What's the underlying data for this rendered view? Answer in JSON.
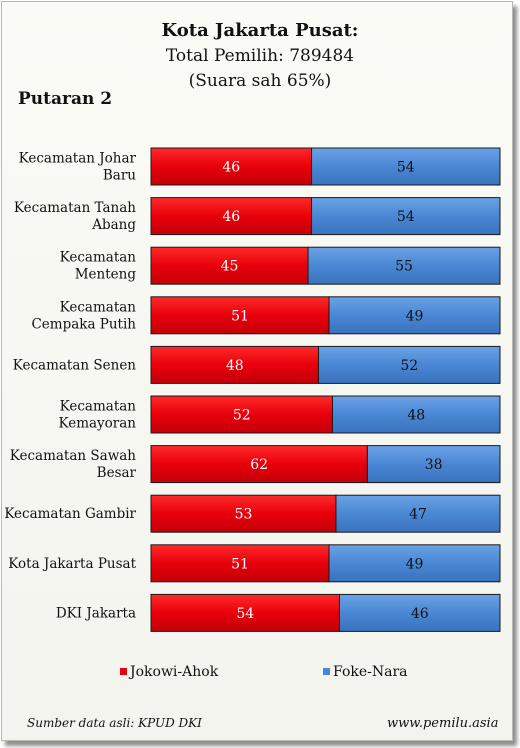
{
  "chart_data": {
    "type": "bar",
    "stacked": true,
    "orientation": "horizontal",
    "title": "Kota Jakarta Pusat:",
    "subtitle_lines": [
      "Total Pemilih: 789484",
      "(Suara sah 65%)"
    ],
    "round_label": "Putaran 2",
    "categories": [
      [
        "Kecamatan Johar",
        "Baru"
      ],
      [
        "Kecamatan Tanah",
        "Abang"
      ],
      [
        "Kecamatan",
        "Menteng"
      ],
      [
        "Kecamatan",
        "Cempaka Putih"
      ],
      [
        "Kecamatan Senen"
      ],
      [
        "Kecamatan",
        "Kemayoran"
      ],
      [
        "Kecamatan Sawah",
        "Besar"
      ],
      [
        "Kecamatan Gambir"
      ],
      [
        "Kota Jakarta Pusat"
      ],
      [
        "DKI Jakarta"
      ]
    ],
    "series": [
      {
        "name": "Jokowi-Ahok",
        "color": "#e8000b",
        "values": [
          46,
          46,
          45,
          51,
          48,
          52,
          62,
          53,
          51,
          54
        ]
      },
      {
        "name": "Foke-Nara",
        "color": "#4a87d4",
        "values": [
          54,
          54,
          55,
          49,
          52,
          48,
          38,
          47,
          49,
          46
        ]
      }
    ],
    "xlim": [
      0,
      100
    ],
    "legend_position": "bottom",
    "grid": false
  },
  "footer": {
    "source": "Sumber data asli: KPUD DKI",
    "site": "www.pemilu.asia"
  }
}
